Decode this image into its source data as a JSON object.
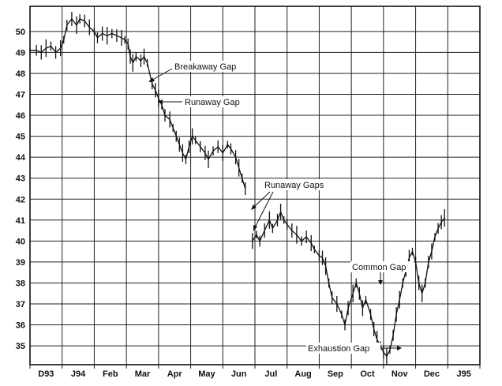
{
  "chart_data": {
    "type": "line",
    "title": "",
    "xlabel": "",
    "ylabel": "",
    "x_tick_labels": [
      "D93",
      "J94",
      "Feb",
      "Mar",
      "Apr",
      "May",
      "Jun",
      "Jul",
      "Aug",
      "Sep",
      "Oct",
      "Nov",
      "Dec",
      "J95"
    ],
    "y_ticks": [
      35,
      36,
      37,
      38,
      39,
      40,
      41,
      42,
      43,
      44,
      45,
      46,
      47,
      48,
      49,
      50
    ],
    "ylim": [
      34.1,
      51.2
    ],
    "xlim": [
      0,
      14
    ],
    "grid": true,
    "series": [
      {
        "points": [
          [
            0.0,
            49.1
          ],
          [
            0.2,
            49.1
          ],
          [
            0.35,
            49.0
          ],
          [
            0.5,
            49.2
          ],
          [
            0.65,
            49.3
          ],
          [
            0.8,
            49.0
          ],
          [
            0.95,
            49.2
          ],
          [
            1.05,
            49.6
          ],
          [
            1.15,
            50.3
          ],
          [
            1.3,
            50.6
          ],
          [
            1.45,
            50.3
          ],
          [
            1.55,
            50.6
          ],
          [
            1.7,
            50.5
          ],
          [
            1.85,
            50.2
          ],
          [
            2.0,
            50.0
          ],
          [
            2.1,
            49.7
          ],
          [
            2.25,
            49.9
          ],
          [
            2.4,
            49.8
          ],
          [
            2.55,
            49.9
          ],
          [
            2.7,
            49.8
          ],
          [
            2.85,
            49.7
          ],
          [
            2.95,
            49.6
          ],
          [
            3.05,
            49.4
          ],
          [
            3.12,
            48.8
          ],
          [
            3.2,
            48.5
          ],
          [
            3.3,
            48.8
          ],
          [
            3.45,
            48.6
          ],
          [
            3.55,
            48.8
          ],
          [
            3.65,
            48.5
          ],
          [
            3.8,
            47.5
          ],
          [
            3.9,
            47.2
          ],
          [
            4.0,
            46.8
          ],
          [
            4.1,
            46.5
          ],
          [
            4.2,
            46.0
          ],
          [
            4.35,
            45.8
          ],
          [
            4.45,
            45.4
          ],
          [
            4.55,
            45.0
          ],
          [
            4.65,
            44.6
          ],
          [
            4.75,
            44.2
          ],
          [
            4.85,
            43.9
          ],
          [
            4.95,
            44.5
          ],
          [
            5.05,
            45.0
          ],
          [
            5.15,
            44.8
          ],
          [
            5.3,
            44.5
          ],
          [
            5.45,
            44.2
          ],
          [
            5.55,
            43.9
          ],
          [
            5.7,
            44.3
          ],
          [
            5.85,
            44.5
          ],
          [
            6.0,
            44.2
          ],
          [
            6.15,
            44.6
          ],
          [
            6.25,
            44.4
          ],
          [
            6.4,
            44.0
          ],
          [
            6.5,
            43.5
          ],
          [
            6.6,
            43.0
          ],
          [
            6.7,
            42.5
          ],
          [
            6.92,
            40.0
          ],
          [
            7.05,
            40.3
          ],
          [
            7.15,
            40.0
          ],
          [
            7.3,
            40.5
          ],
          [
            7.45,
            41.0
          ],
          [
            7.55,
            40.6
          ],
          [
            7.7,
            41.0
          ],
          [
            7.8,
            41.4
          ],
          [
            7.9,
            41.0
          ],
          [
            8.0,
            40.8
          ],
          [
            8.15,
            40.5
          ],
          [
            8.3,
            40.3
          ],
          [
            8.45,
            40.0
          ],
          [
            8.6,
            40.2
          ],
          [
            8.75,
            39.9
          ],
          [
            8.85,
            39.6
          ],
          [
            9.0,
            39.3
          ],
          [
            9.1,
            39.2
          ],
          [
            9.2,
            38.8
          ],
          [
            9.3,
            38.0
          ],
          [
            9.4,
            37.3
          ],
          [
            9.55,
            37.0
          ],
          [
            9.7,
            36.5
          ],
          [
            9.8,
            36.0
          ],
          [
            9.9,
            36.8
          ],
          [
            10.05,
            37.5
          ],
          [
            10.15,
            38.0
          ],
          [
            10.25,
            37.5
          ],
          [
            10.35,
            36.8
          ],
          [
            10.45,
            37.2
          ],
          [
            10.6,
            36.5
          ],
          [
            10.7,
            35.8
          ],
          [
            10.8,
            35.3
          ],
          [
            10.9,
            35.0
          ],
          [
            11.0,
            34.7
          ],
          [
            11.1,
            34.5
          ],
          [
            11.2,
            34.8
          ],
          [
            11.3,
            35.5
          ],
          [
            11.4,
            36.5
          ],
          [
            11.5,
            37.2
          ],
          [
            11.6,
            38.0
          ],
          [
            11.7,
            38.6
          ],
          [
            11.8,
            39.2
          ],
          [
            11.9,
            39.5
          ],
          [
            12.0,
            39.0
          ],
          [
            12.1,
            38.0
          ],
          [
            12.2,
            37.5
          ],
          [
            12.3,
            38.0
          ],
          [
            12.4,
            39.0
          ],
          [
            12.5,
            39.5
          ],
          [
            12.6,
            40.2
          ],
          [
            12.7,
            40.6
          ],
          [
            12.8,
            40.9
          ],
          [
            12.9,
            41.1
          ]
        ]
      }
    ],
    "annotations": [
      {
        "text": "Breakaway Gap",
        "x": 3.72,
        "y": 47.7
      },
      {
        "text": "Runaway Gap",
        "x": 3.97,
        "y": 46.9
      },
      {
        "text": "Runaway Gaps",
        "x": 6.85,
        "y": 41.6
      },
      {
        "text": "Common Gap",
        "x": 10.0,
        "y": 38.2
      },
      {
        "text": "Exhaustion Gap",
        "x": 11.15,
        "y": 34.7
      }
    ]
  }
}
